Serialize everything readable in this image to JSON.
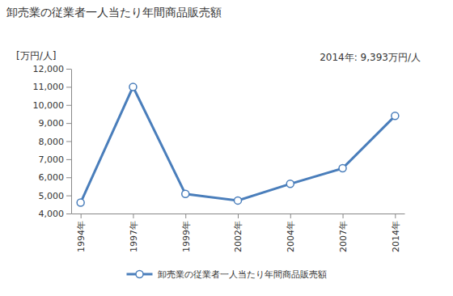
{
  "chart_data": {
    "type": "line",
    "title": "卸売業の従業者一人当たり年間商品販売額",
    "y_label": "[万円/人]",
    "annotations": [
      "2014年: 9,393万円/人"
    ],
    "categories": [
      "1994年",
      "1997年",
      "1999年",
      "2002年",
      "2004年",
      "2007年",
      "2014年"
    ],
    "series": [
      {
        "name": "卸売業の従業者一人当たり年間商品販売額",
        "color": "#4a7ebb",
        "marker": "circle",
        "values": [
          4600,
          11000,
          5080,
          4720,
          5640,
          6500,
          9393
        ]
      }
    ],
    "ylim": [
      4000,
      12000
    ],
    "yticks": [
      {
        "value": 4000,
        "label": "4,000"
      },
      {
        "value": 5000,
        "label": "5,000"
      },
      {
        "value": 6000,
        "label": "6,000"
      },
      {
        "value": 7000,
        "label": "7,000"
      },
      {
        "value": 8000,
        "label": "8,000"
      },
      {
        "value": 9000,
        "label": "9,000"
      },
      {
        "value": 10000,
        "label": "10,000"
      },
      {
        "value": 11000,
        "label": "11,000"
      },
      {
        "value": 12000,
        "label": "12,000"
      }
    ],
    "grid": false,
    "legend": "bottom"
  }
}
